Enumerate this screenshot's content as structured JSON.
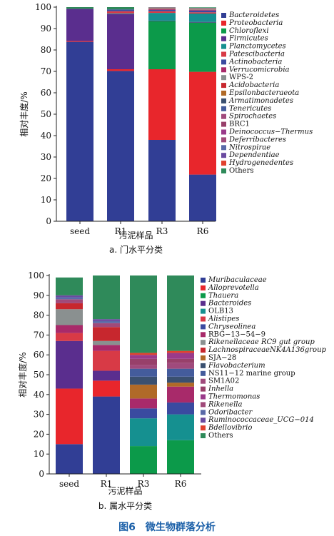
{
  "figure": {
    "caption": "图6　微生物群落分析",
    "caption_color": "#1a5fa8"
  },
  "chart_data": [
    {
      "type": "bar",
      "stacked": true,
      "categories": [
        "seed",
        "R1",
        "R3",
        "R6"
      ],
      "xlabel": "污泥样品",
      "ylabel": "相对丰度/%",
      "ylim": [
        0,
        100
      ],
      "yticks": [
        0,
        10,
        20,
        30,
        40,
        50,
        60,
        70,
        80,
        90,
        100
      ],
      "subcaption": "a. 门水平分类",
      "legend_position": "right",
      "series": [
        {
          "name": "Bacteroidetes",
          "color": "#313e95",
          "values": [
            83.8,
            70.2,
            38.0,
            21.8
          ]
        },
        {
          "name": "Proteobacteria",
          "color": "#e8262c",
          "values": [
            0.4,
            0.8,
            33.0,
            48.0
          ]
        },
        {
          "name": "Chloroflexi",
          "color": "#0c9a4a",
          "values": [
            0.0,
            0.0,
            22.5,
            23.0
          ]
        },
        {
          "name": "Firmicutes",
          "color": "#5a2e8e",
          "values": [
            15.0,
            25.8,
            0.2,
            0.3
          ]
        },
        {
          "name": "Planctomycetes",
          "color": "#159090",
          "values": [
            0.0,
            0.3,
            3.6,
            3.9
          ]
        },
        {
          "name": "Patescibacteria",
          "color": "#d83a46",
          "values": [
            0.0,
            1.0,
            0.8,
            0.6
          ]
        },
        {
          "name": "Actinobacteria",
          "color": "#3a4aa0",
          "values": [
            0.0,
            0.8,
            0.6,
            0.8
          ]
        },
        {
          "name": "Verrucomicrobia",
          "color": "#a82a6a",
          "values": [
            0.0,
            0.0,
            0.3,
            0.3
          ]
        },
        {
          "name": "WPS-2",
          "color": "#8a9090",
          "values": [
            0.0,
            0.0,
            0.2,
            0.2
          ]
        },
        {
          "name": "Acidobacteria",
          "color": "#c7272e",
          "values": [
            0.0,
            0.0,
            0.2,
            0.2
          ]
        },
        {
          "name": "Epsilonbacteraeota",
          "color": "#b06a28",
          "values": [
            0.0,
            0.0,
            0.1,
            0.1
          ]
        },
        {
          "name": "Armatimonadetes",
          "color": "#3a5070",
          "values": [
            0.0,
            0.0,
            0.1,
            0.1
          ]
        },
        {
          "name": "Tenericutes",
          "color": "#445c9c",
          "values": [
            0.0,
            0.0,
            0.1,
            0.1
          ]
        },
        {
          "name": "Spirochaetes",
          "color": "#a04a7c",
          "values": [
            0.0,
            0.0,
            0.1,
            0.1
          ]
        },
        {
          "name": "BRC1",
          "color": "#98406a",
          "values": [
            0.0,
            0.0,
            0.1,
            0.1
          ]
        },
        {
          "name": "Deinococcus−Thermus",
          "color": "#9a3a8a",
          "values": [
            0.0,
            0.0,
            0.0,
            0.0
          ]
        },
        {
          "name": "Deferribacteres",
          "color": "#a04a7a",
          "values": [
            0.0,
            0.0,
            0.0,
            0.0
          ]
        },
        {
          "name": "Nitrospirae",
          "color": "#5a6aa8",
          "values": [
            0.0,
            0.0,
            0.0,
            0.0
          ]
        },
        {
          "name": "Dependentiae",
          "color": "#6a4aa0",
          "values": [
            0.0,
            0.0,
            0.0,
            0.0
          ]
        },
        {
          "name": "Hydrogenedentes",
          "color": "#e0412e",
          "values": [
            0.0,
            0.0,
            0.0,
            0.0
          ]
        },
        {
          "name": "Others",
          "color": "#2f8a5a",
          "values": [
            0.8,
            1.1,
            0.1,
            0.3
          ]
        }
      ]
    },
    {
      "type": "bar",
      "stacked": true,
      "categories": [
        "seed",
        "R1",
        "R3",
        "R6"
      ],
      "xlabel": "污泥样品",
      "ylabel": "相对丰度/%",
      "ylim": [
        0,
        100
      ],
      "yticks": [
        0,
        10,
        20,
        30,
        40,
        50,
        60,
        70,
        80,
        90,
        100
      ],
      "subcaption": "b. 属水平分类",
      "legend_position": "right",
      "series": [
        {
          "name": "Muribaculaceae",
          "italic": true,
          "color": "#313e95",
          "values": [
            15.0,
            39.0,
            0.0,
            0.0
          ]
        },
        {
          "name": "Alloprevotella",
          "italic": true,
          "color": "#e8262c",
          "values": [
            28.0,
            8.0,
            0.0,
            0.0
          ]
        },
        {
          "name": "Thauera",
          "italic": true,
          "color": "#0c9a4a",
          "values": [
            0.0,
            0.0,
            14.0,
            17.0
          ]
        },
        {
          "name": "Bacteroides",
          "italic": true,
          "color": "#5a2e8e",
          "values": [
            24.0,
            5.0,
            0.0,
            0.0
          ]
        },
        {
          "name": "OLB13",
          "italic": false,
          "color": "#159090",
          "values": [
            0.0,
            0.0,
            14.0,
            13.0
          ]
        },
        {
          "name": "Alistipes",
          "italic": true,
          "color": "#d83a46",
          "values": [
            4.0,
            10.0,
            0.0,
            0.0
          ]
        },
        {
          "name": "Chryseolinea",
          "italic": true,
          "color": "#3a4aa0",
          "values": [
            0.0,
            0.0,
            5.0,
            6.0
          ]
        },
        {
          "name": "RBG−13−54−9",
          "italic": false,
          "color": "#a82a6a",
          "values": [
            4.0,
            3.0,
            5.0,
            8.0
          ]
        },
        {
          "name": "Rikenellaceae RC9 gut group",
          "italic": true,
          "color": "#8a9090",
          "values": [
            8.0,
            2.0,
            0.0,
            0.0
          ]
        },
        {
          "name": "LachnospiraceaeNK4A136group",
          "italic": true,
          "color": "#c7272e",
          "values": [
            3.0,
            7.0,
            0.0,
            0.0
          ]
        },
        {
          "name": "SJA−28",
          "italic": false,
          "color": "#b06a28",
          "values": [
            0.0,
            0.0,
            7.0,
            2.0
          ]
        },
        {
          "name": "Flavobacterium",
          "italic": true,
          "color": "#3a5070",
          "values": [
            0.0,
            0.0,
            4.0,
            3.0
          ]
        },
        {
          "name": "NS11−12 marine group",
          "italic": false,
          "color": "#445c9c",
          "values": [
            0.0,
            0.0,
            4.0,
            4.0
          ]
        },
        {
          "name": "SM1A02",
          "italic": false,
          "color": "#a04a7c",
          "values": [
            0.0,
            0.0,
            2.0,
            3.0
          ]
        },
        {
          "name": "Inhella",
          "italic": true,
          "color": "#98406a",
          "values": [
            0.0,
            0.0,
            3.0,
            2.0
          ]
        },
        {
          "name": "Thermomonas",
          "italic": true,
          "color": "#9a3a8a",
          "values": [
            0.0,
            0.0,
            2.0,
            3.0
          ]
        },
        {
          "name": "Rikenella",
          "italic": true,
          "color": "#a04a7a",
          "values": [
            2.0,
            2.0,
            0.0,
            0.0
          ]
        },
        {
          "name": "Odoribacter",
          "italic": true,
          "color": "#5a6aa8",
          "values": [
            1.0,
            1.0,
            0.0,
            0.0
          ]
        },
        {
          "name": "Ruminococcaceae_UCG−014",
          "italic": true,
          "color": "#6a4aa0",
          "values": [
            1.0,
            1.0,
            0.0,
            0.0
          ]
        },
        {
          "name": "Bdellovibrio",
          "italic": true,
          "color": "#e0412e",
          "values": [
            0.0,
            0.0,
            1.0,
            1.0
          ]
        },
        {
          "name": "Others",
          "italic": false,
          "color": "#2f8a5a",
          "values": [
            9.0,
            22.0,
            39.0,
            38.0
          ]
        }
      ]
    }
  ]
}
